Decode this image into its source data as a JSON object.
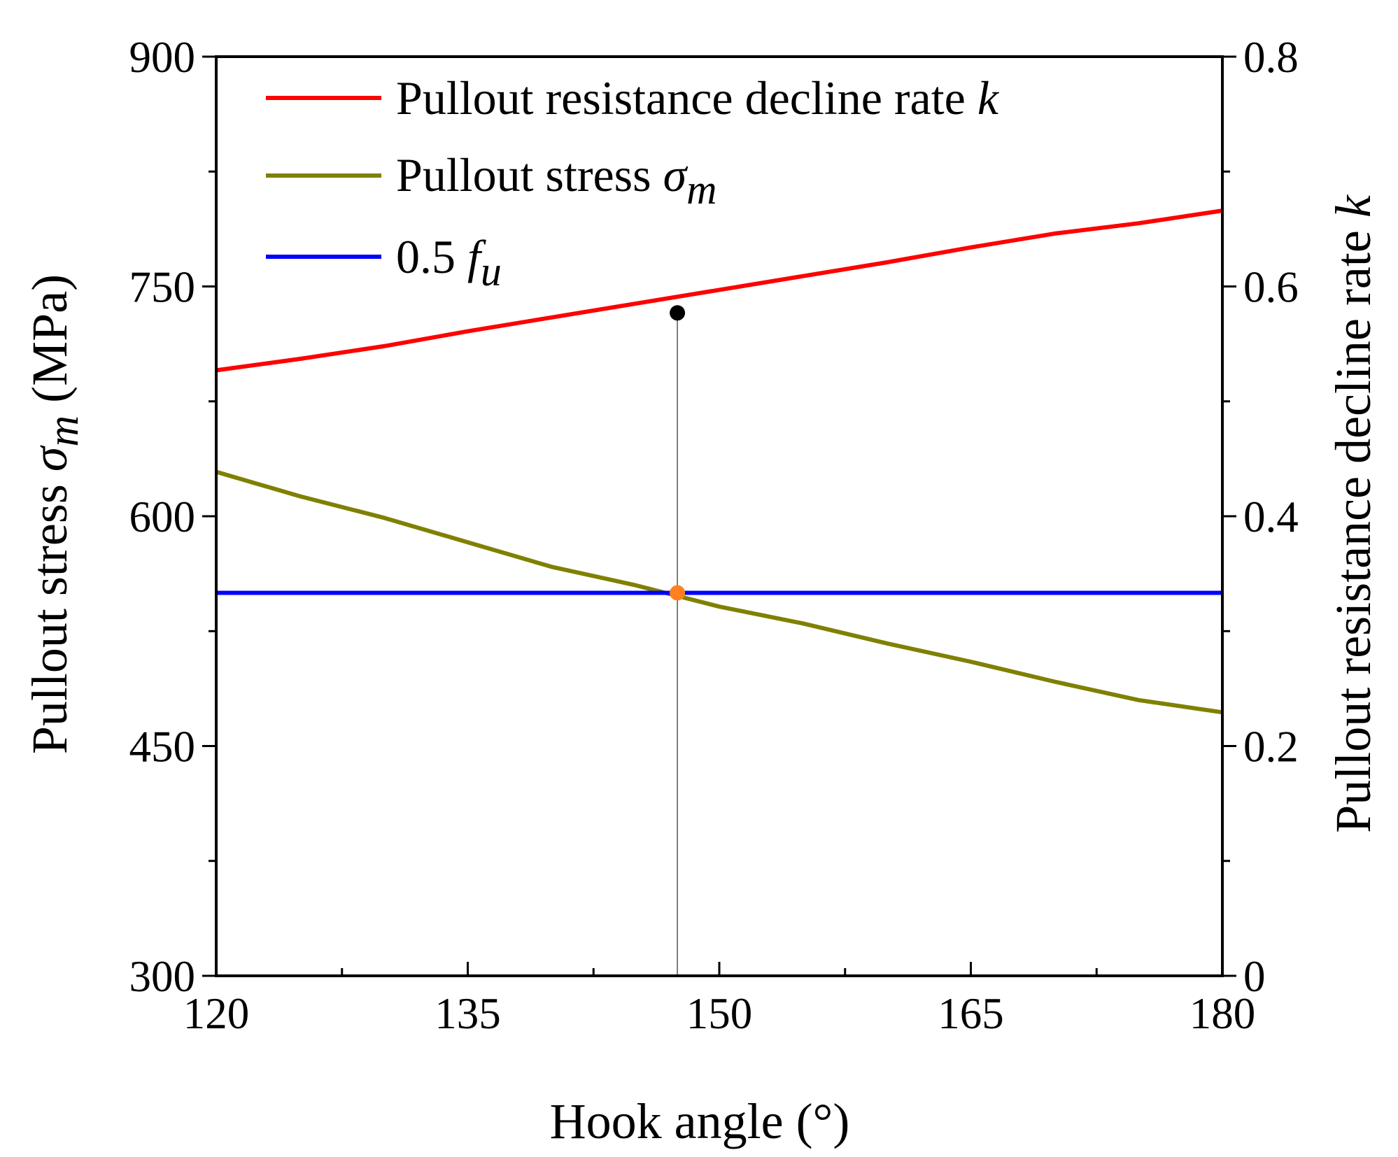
{
  "chart_data": {
    "type": "line",
    "title": "",
    "xlabel": "Hook angle (°)",
    "ylabel_left": {
      "text": "Pullout stress ",
      "symbol": "σ",
      "subscript": "m",
      "unit": " (MPa)"
    },
    "ylabel_right": {
      "text": "Pullout resistance decline rate ",
      "symbol": "k"
    },
    "xlim": [
      120,
      180
    ],
    "ylim_left": [
      300,
      900
    ],
    "ylim_right": [
      0,
      0.8
    ],
    "x_ticks": [
      "120",
      "135",
      "150",
      "165",
      "180"
    ],
    "y_left_ticks": [
      "300",
      "450",
      "600",
      "750",
      "900"
    ],
    "y_right_ticks": [
      "0",
      "0.2",
      "0.4",
      "0.6",
      "0.8"
    ],
    "series": [
      {
        "name": "Pullout resistance decline rate k",
        "legend_text": "Pullout resistance decline rate ",
        "legend_symbol": "k",
        "axis": "right",
        "color": "#ff0000",
        "x": [
          120,
          125,
          130,
          135,
          140,
          145,
          150,
          155,
          160,
          165,
          170,
          175,
          180
        ],
        "y": [
          0.527,
          0.537,
          0.548,
          0.561,
          0.573,
          0.585,
          0.597,
          0.609,
          0.621,
          0.634,
          0.646,
          0.655,
          0.666
        ]
      },
      {
        "name": "Pullout stress σm",
        "legend_text": "Pullout stress ",
        "legend_symbol": "σ",
        "legend_subscript": "m",
        "axis": "left",
        "color": "#808000",
        "x": [
          120,
          125,
          130,
          135,
          140,
          145,
          150,
          155,
          160,
          165,
          170,
          175,
          180
        ],
        "y": [
          629,
          613,
          599,
          583,
          567,
          555,
          541,
          530,
          517,
          505,
          492,
          480,
          472
        ]
      },
      {
        "name": "0.5 fu",
        "legend_text": "0.5 ",
        "legend_symbol": "f",
        "legend_subscript": "u",
        "axis": "left",
        "color": "#0000ff",
        "x": [
          120,
          180
        ],
        "y": [
          550,
          550
        ]
      }
    ],
    "markers": [
      {
        "name": "k-intersection-point",
        "x": 147.5,
        "y": 0.577,
        "axis": "right",
        "color": "#000000"
      },
      {
        "name": "stress-intersection-point",
        "x": 147.5,
        "y": 550,
        "axis": "left",
        "color": "#ff8020"
      }
    ],
    "reference_line": {
      "x": 147.5,
      "from": 300,
      "to": 733,
      "axis": "left",
      "color": "#555555"
    },
    "legend_location": "top-left",
    "grid": false
  }
}
